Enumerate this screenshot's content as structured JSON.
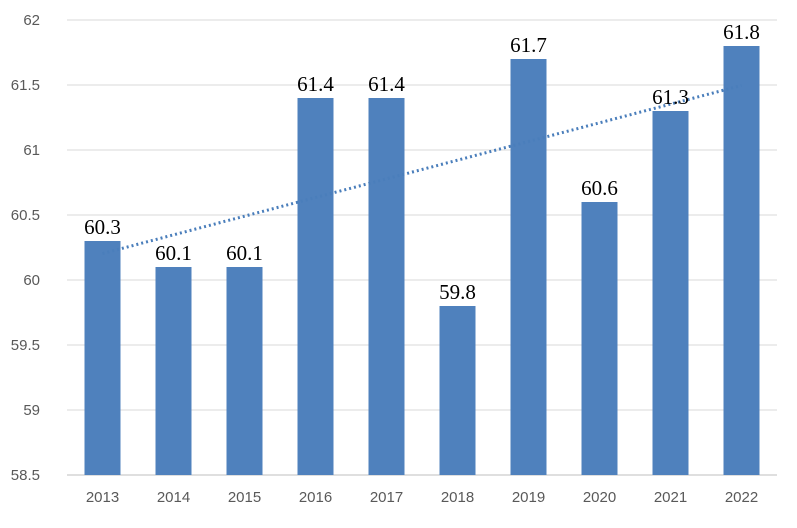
{
  "chart_data": {
    "type": "bar",
    "title": "",
    "xlabel": "",
    "ylabel": "",
    "categories": [
      "2013",
      "2014",
      "2015",
      "2016",
      "2017",
      "2018",
      "2019",
      "2020",
      "2021",
      "2022"
    ],
    "values": [
      60.3,
      60.1,
      60.1,
      61.4,
      61.4,
      59.8,
      61.7,
      60.6,
      61.3,
      61.8
    ],
    "value_labels": [
      "60.3",
      "60.1",
      "60.1",
      "61.4",
      "61.4",
      "59.8",
      "61.7",
      "60.6",
      "61.3",
      "61.8"
    ],
    "ylim": [
      58.5,
      62
    ],
    "y_ticks": [
      "58.5",
      "59",
      "59.5",
      "60",
      "60.5",
      "61",
      "61.5",
      "62"
    ],
    "grid": true,
    "legend": "none",
    "trendline": {
      "type": "linear",
      "style": "dotted"
    },
    "colors": {
      "bar": "#4f81bd",
      "trendline": "#4a7ebb",
      "grid": "#d9d9d9"
    }
  }
}
